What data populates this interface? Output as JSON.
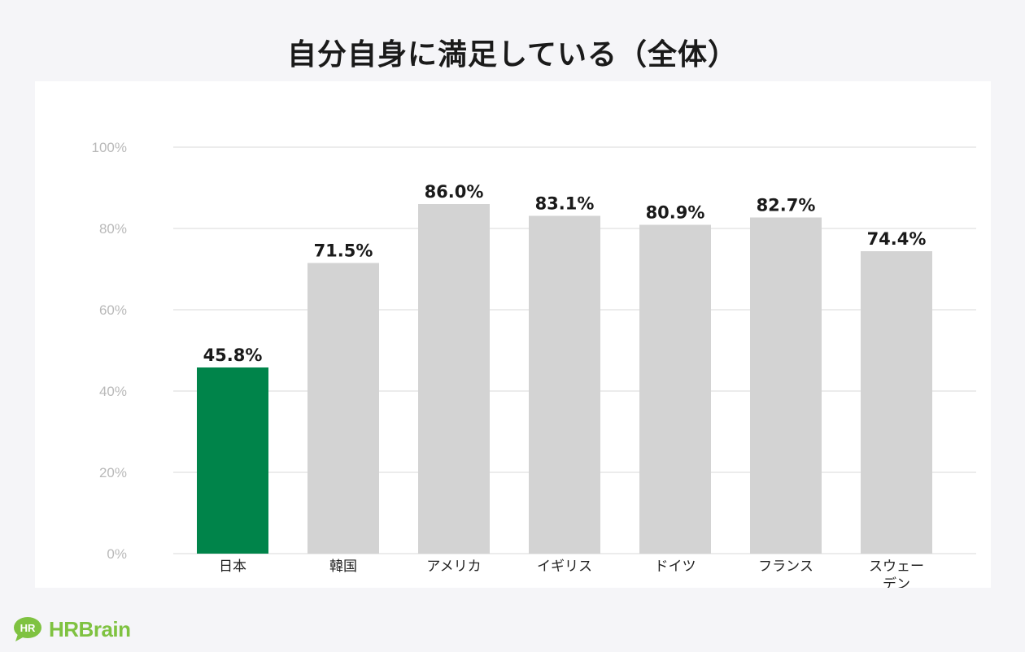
{
  "title": "自分自身に満足している（全体）",
  "colors": {
    "highlight": "#00844a",
    "bar": "#d3d3d3",
    "grid": "#e6e6e6",
    "logo": "#7fc241"
  },
  "logo": {
    "bubble_text": "HR",
    "word": "HRBrain",
    "icon": "speech-bubble-icon"
  },
  "chart_data": {
    "type": "bar",
    "title": "自分自身に満足している（全体）",
    "categories": [
      "日本",
      "韓国",
      "アメリカ",
      "イギリス",
      "ドイツ",
      "フランス",
      "スウェーデン"
    ],
    "category_label_lines": [
      [
        "日本"
      ],
      [
        "韓国"
      ],
      [
        "アメリカ"
      ],
      [
        "イギリス"
      ],
      [
        "ドイツ"
      ],
      [
        "フランス"
      ],
      [
        "スウェー",
        "デン"
      ]
    ],
    "values": [
      45.8,
      71.5,
      86.0,
      83.1,
      80.9,
      82.7,
      74.4
    ],
    "value_labels": [
      "45.8%",
      "71.5%",
      "86.0%",
      "83.1%",
      "80.9%",
      "82.7%",
      "74.4%"
    ],
    "highlight_index": 0,
    "ylim": [
      0,
      100
    ],
    "yticks": [
      0,
      20,
      40,
      60,
      80,
      100
    ],
    "ytick_labels": [
      "0%",
      "20%",
      "40%",
      "60%",
      "80%",
      "100%"
    ],
    "grid": true,
    "legend": "none"
  }
}
